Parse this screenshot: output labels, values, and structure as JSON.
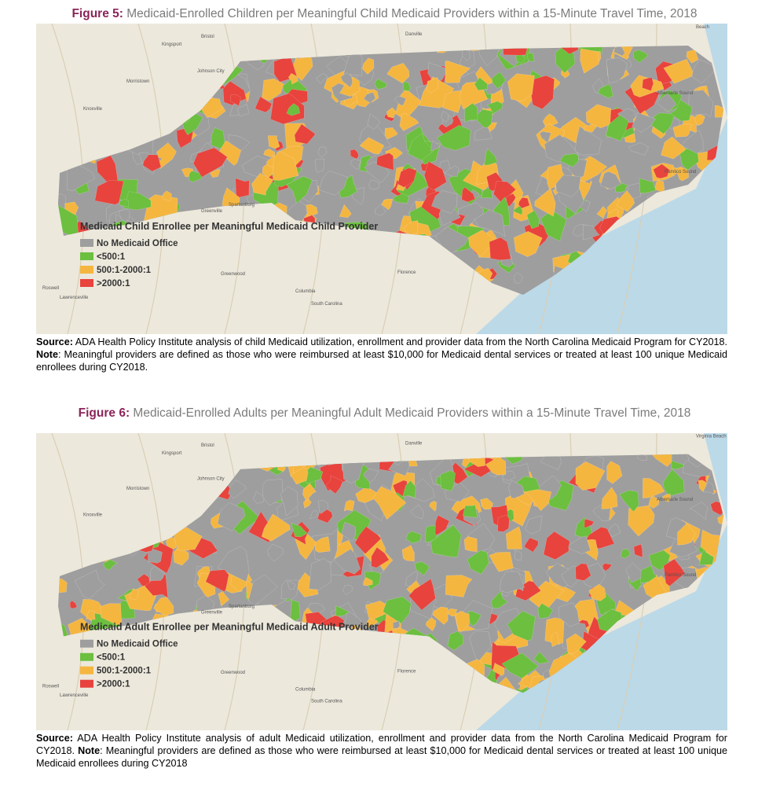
{
  "figures": [
    {
      "label": "Figure 5:",
      "title": "Medicaid-Enrolled Children per Meaningful Child Medicaid Providers within a 15-Minute Travel Time, 2018",
      "map_places": [
        "Beach",
        "Danville",
        "Bristol",
        "Kingsport",
        "Johnson City",
        "Morristown",
        "Knoxville",
        "Spartanburg",
        "Greenville",
        "Greenwood",
        "Columbia",
        "South Carolina",
        "Florence",
        "Roswell",
        "Lawrenceville",
        "Albemarle Sound",
        "Pamlico Sound"
      ],
      "legend": {
        "title": "Medicaid Child Enrollee per Meaningful Medicaid Child Provider",
        "items": [
          {
            "label": "No Medicaid Office",
            "color": "#9e9e9e"
          },
          {
            "label": "<500:1",
            "color": "#6cbf3f"
          },
          {
            "label": "500:1-2000:1",
            "color": "#f5b640"
          },
          {
            "label": ">2000:1",
            "color": "#e8433d"
          }
        ]
      },
      "source_label": "Source:",
      "source_text": "ADA Health Policy Institute analysis of child Medicaid utilization, enrollment and provider data from the North Carolina Medicaid Program for CY2018.",
      "note_label": "Note",
      "note_text": ": Meaningful providers are defined as those who were reimbursed at least $10,000 for Medicaid dental services or treated at least 100 unique Medicaid enrollees during CY2018."
    },
    {
      "label": "Figure 6:",
      "title": "Medicaid-Enrolled Adults per Meaningful Adult Medicaid Providers within a 15-Minute Travel Time, 2018",
      "map_places": [
        "Virginia Beach",
        "Danville",
        "Bristol",
        "Kingsport",
        "Johnson City",
        "Morristown",
        "Knoxville",
        "Spartanburg",
        "Greenville",
        "Greenwood",
        "Columbia",
        "South Carolina",
        "Florence",
        "Roswell",
        "Lawrenceville",
        "Albemarle Sound",
        "Pamlico Sound"
      ],
      "legend": {
        "title": "Medicaid Adult Enrollee per Meaningful Medicaid Adult Provider",
        "items": [
          {
            "label": "No Medicaid Office",
            "color": "#9e9e9e"
          },
          {
            "label": "<500:1",
            "color": "#6cbf3f"
          },
          {
            "label": "500:1-2000:1",
            "color": "#f5b640"
          },
          {
            "label": ">2000:1",
            "color": "#e8433d"
          }
        ]
      },
      "source_label": "Source:",
      "source_text": "ADA Health Policy Institute analysis of adult Medicaid utilization, enrollment and provider data from the North Carolina Medicaid Program for CY2018.",
      "note_label": "Note",
      "note_text": ": Meaningful providers are defined as those who were reimbursed at least $10,000 for Medicaid dental services or treated at least 100 unique Medicaid enrollees during CY2018"
    }
  ]
}
